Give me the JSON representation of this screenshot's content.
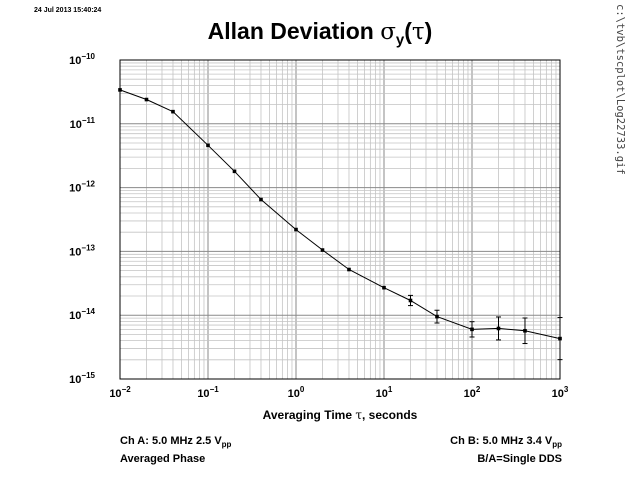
{
  "timestamp": "24 Jul 2013 15:40:24",
  "file_path": "c:\\tvb\\tscplot\\Log22733.gif",
  "chart_data": {
    "type": "scatter",
    "title": {
      "main": "Allan Deviation ",
      "symbol": "σ",
      "subscript": "y",
      "paren_open": "(",
      "tau": "τ",
      "paren_close": ")"
    },
    "xlabel": {
      "prefix": "Averaging Time ",
      "symbol": "τ",
      "suffix": ", seconds"
    },
    "ylabel": "",
    "x_scale": "log",
    "y_scale": "log",
    "xlim": [
      0.01,
      1000
    ],
    "ylim": [
      1e-15,
      1e-10
    ],
    "grid": true,
    "x_ticks": [
      {
        "value": 0.01,
        "base": "10",
        "exp": "−2"
      },
      {
        "value": 0.1,
        "base": "10",
        "exp": "−1"
      },
      {
        "value": 1,
        "base": "10",
        "exp": "0"
      },
      {
        "value": 10,
        "base": "10",
        "exp": "1"
      },
      {
        "value": 100,
        "base": "10",
        "exp": "2"
      },
      {
        "value": 1000,
        "base": "10",
        "exp": "3"
      }
    ],
    "y_ticks": [
      {
        "value": 1e-15,
        "base": "10",
        "exp": "−15"
      },
      {
        "value": 1e-14,
        "base": "10",
        "exp": "−14"
      },
      {
        "value": 1e-13,
        "base": "10",
        "exp": "−13"
      },
      {
        "value": 1e-12,
        "base": "10",
        "exp": "−12"
      },
      {
        "value": 1e-11,
        "base": "10",
        "exp": "−11"
      },
      {
        "value": 1e-10,
        "base": "10",
        "exp": "−10"
      }
    ],
    "series": [
      {
        "color": "#000000",
        "connected": true,
        "points": [
          {
            "x": 0.01,
            "y": 3.4e-11,
            "err": 0
          },
          {
            "x": 0.02,
            "y": 2.4e-11,
            "err": 0
          },
          {
            "x": 0.04,
            "y": 1.55e-11,
            "err": 0
          },
          {
            "x": 0.1,
            "y": 4.6e-12,
            "err": 0
          },
          {
            "x": 0.2,
            "y": 1.8e-12,
            "err": 0
          },
          {
            "x": 0.4,
            "y": 6.5e-13,
            "err": 0
          },
          {
            "x": 1,
            "y": 2.2e-13,
            "err": 0
          },
          {
            "x": 2,
            "y": 1.05e-13,
            "err": 0
          },
          {
            "x": 4,
            "y": 5.2e-14,
            "err": 0
          },
          {
            "x": 10,
            "y": 2.7e-14,
            "err": 0
          },
          {
            "x": 20,
            "y": 1.7e-14,
            "err": 0.08
          },
          {
            "x": 40,
            "y": 9.5e-15,
            "err": 0.1
          },
          {
            "x": 100,
            "y": 6e-15,
            "err": 0.12
          },
          {
            "x": 200,
            "y": 6.2e-15,
            "err": 0.18
          },
          {
            "x": 400,
            "y": 5.7e-15,
            "err": 0.2
          },
          {
            "x": 1000,
            "y": 4.3e-15,
            "err": 0.33
          }
        ]
      }
    ]
  },
  "notes": {
    "left": {
      "line1_main": "Ch A: 5.0 MHz 2.5 V",
      "line1_sub": "pp",
      "line2": "Averaged Phase"
    },
    "right": {
      "line1_main": "Ch B: 5.0 MHz 3.4 V",
      "line1_sub": "pp",
      "line2": "B/A=Single DDS"
    }
  }
}
